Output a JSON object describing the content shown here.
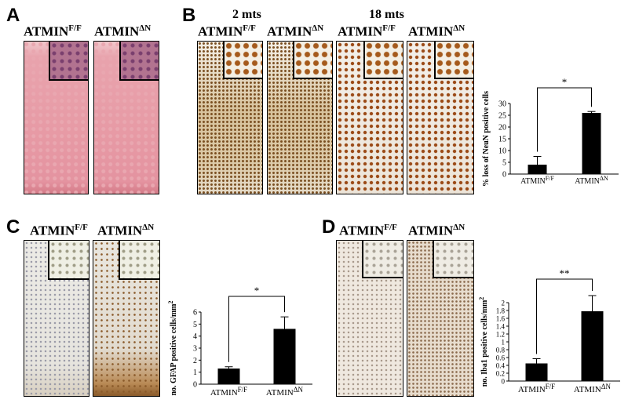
{
  "panels": {
    "A": {
      "letter": "A",
      "ctrl_label": "ATMIN",
      "ctrl_sup": "F/F",
      "ko_label": "ATMIN",
      "ko_sup": "ΔN"
    },
    "B": {
      "letter": "B",
      "tp1": "2 mts",
      "tp2": "18 mts",
      "ctrl_label": "ATMIN",
      "ctrl_sup": "F/F",
      "ko_label": "ATMIN",
      "ko_sup": "ΔN"
    },
    "C": {
      "letter": "C",
      "ctrl_label": "ATMIN",
      "ctrl_sup": "F/F",
      "ko_label": "ATMIN",
      "ko_sup": "ΔN"
    },
    "D": {
      "letter": "D",
      "ctrl_label": "ATMIN",
      "ctrl_sup": "F/F",
      "ko_label": "ATMIN",
      "ko_sup": "ΔN"
    }
  },
  "chart_data": [
    {
      "id": "B",
      "type": "bar",
      "categories": [
        "ATMIN",
        "ATMIN"
      ],
      "category_sups": [
        "F/F",
        "ΔN"
      ],
      "values": [
        4,
        26
      ],
      "errors": [
        3.5,
        0.6
      ],
      "ylabel": "% loss of NeuN positive cells",
      "ylim": [
        0,
        30
      ],
      "yticks": [
        0,
        5,
        10,
        15,
        20,
        25,
        30
      ],
      "significance": "*",
      "grid": false
    },
    {
      "id": "C",
      "type": "bar",
      "categories": [
        "ATMIN",
        "ATMIN"
      ],
      "category_sups": [
        "F/F",
        "ΔN"
      ],
      "values": [
        1.3,
        4.6
      ],
      "errors": [
        0.15,
        1.0
      ],
      "ylabel": "no. GFAP positive cells/mm",
      "ylabel_sup": "2",
      "ylim": [
        0,
        6
      ],
      "yticks": [
        0,
        1,
        2,
        3,
        4,
        5,
        6
      ],
      "significance": "*",
      "grid": false
    },
    {
      "id": "D",
      "type": "bar",
      "categories": [
        "ATMIN",
        "ATMIN"
      ],
      "category_sups": [
        "F/F",
        "ΔN"
      ],
      "values": [
        0.45,
        1.78
      ],
      "errors": [
        0.12,
        0.4
      ],
      "ylabel": "no. Iba1 positive cells/mm",
      "ylabel_sup": "2",
      "ylim": [
        0,
        2
      ],
      "yticks": [
        0,
        0.2,
        0.4,
        0.6,
        0.8,
        1,
        1.2,
        1.4,
        1.6,
        1.8,
        2
      ],
      "significance": "**",
      "grid": false
    }
  ]
}
